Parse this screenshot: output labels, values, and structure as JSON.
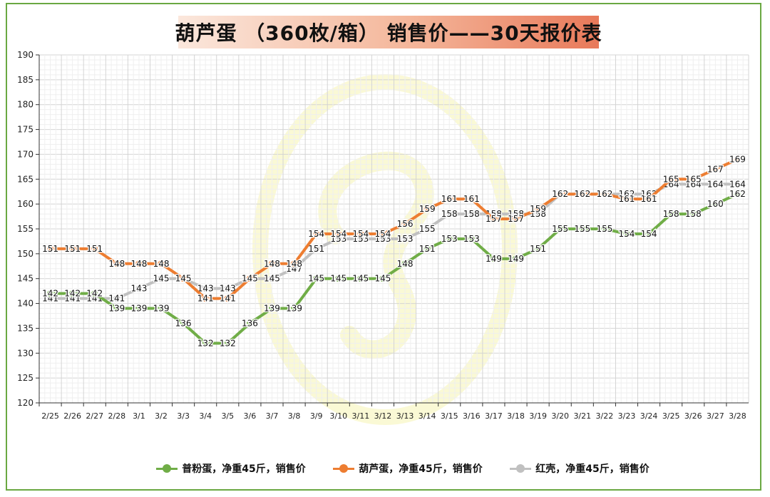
{
  "title": "葫芦蛋 （360枚/箱） 销售价——30天报价表",
  "chart_data": {
    "type": "line",
    "title": "葫芦蛋 （360枚/箱） 销售价——30天报价表",
    "xlabel": "",
    "ylabel": "",
    "ylim": [
      120,
      190
    ],
    "yticks": [
      120,
      125,
      130,
      135,
      140,
      145,
      150,
      155,
      160,
      165,
      170,
      175,
      180,
      185,
      190
    ],
    "grid": true,
    "legend_position": "bottom",
    "categories": [
      "2/25",
      "2/26",
      "2/27",
      "2/28",
      "3/1",
      "3/2",
      "3/3",
      "3/4",
      "3/5",
      "3/6",
      "3/7",
      "3/8",
      "3/9",
      "3/10",
      "3/11",
      "3/12",
      "3/13",
      "3/14",
      "3/15",
      "3/16",
      "3/17",
      "3/18",
      "3/19",
      "3/20",
      "3/21",
      "3/22",
      "3/23",
      "3/24",
      "3/25",
      "3/26",
      "3/27",
      "3/28"
    ],
    "series": [
      {
        "name": "红壳，净重45斤，销售价",
        "color": "#c0c0c0",
        "values": [
          141,
          141,
          141,
          141,
          143,
          145,
          145,
          143,
          143,
          145,
          145,
          147,
          151,
          153,
          153,
          153,
          153,
          155,
          158,
          158,
          158,
          158,
          158,
          162,
          162,
          162,
          162,
          162,
          164,
          164,
          164,
          164
        ]
      },
      {
        "name": "葫芦蛋，净重45斤，销售价",
        "color": "#ed7d31",
        "values": [
          151,
          151,
          151,
          148,
          148,
          148,
          145,
          141,
          141,
          145,
          148,
          148,
          154,
          154,
          154,
          154,
          156,
          159,
          161,
          161,
          157,
          157,
          159,
          162,
          162,
          162,
          161,
          161,
          165,
          165,
          167,
          169
        ]
      },
      {
        "name": "普粉蛋，净重45斤，销售价",
        "color": "#70ad47",
        "values": [
          142,
          142,
          142,
          139,
          139,
          139,
          136,
          132,
          132,
          136,
          139,
          139,
          145,
          145,
          145,
          145,
          148,
          151,
          153,
          153,
          149,
          149,
          151,
          155,
          155,
          155,
          154,
          154,
          158,
          158,
          160,
          162
        ]
      }
    ]
  },
  "legend": [
    {
      "label": "普粉蛋，净重45斤，销售价",
      "color": "#70ad47"
    },
    {
      "label": "葫芦蛋，净重45斤，销售价",
      "color": "#ed7d31"
    },
    {
      "label": "红壳，净重45斤，销售价",
      "color": "#c0c0c0"
    }
  ]
}
